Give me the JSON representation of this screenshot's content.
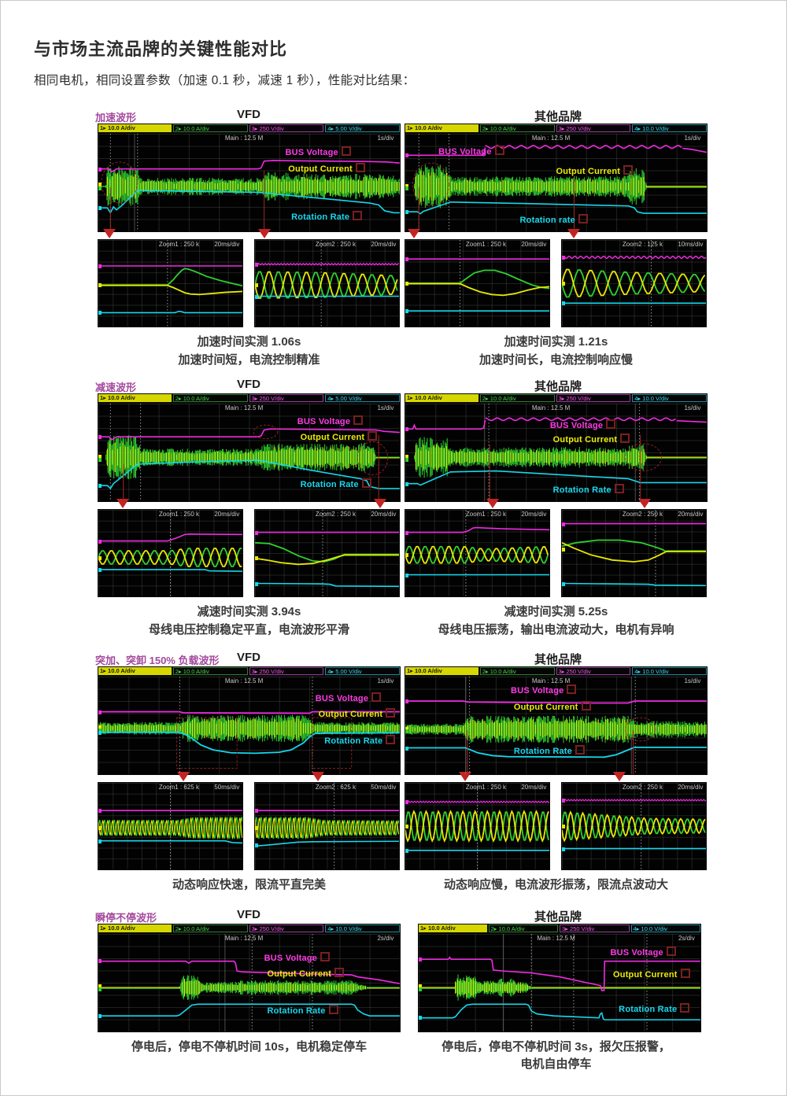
{
  "page": {
    "title": "与市场主流品牌的关键性能对比",
    "subtitle": "相同电机，相同设置参数（加速 0.1 秒，减速 1 秒），性能对比结果："
  },
  "colors": {
    "bus_voltage": "#f02ae2",
    "output_current_yellow": "#e9e902",
    "output_current_green": "#2fd02f",
    "rotation_rate": "#14d8ec",
    "section_label": "#a3489c",
    "arrow_red": "#c22424"
  },
  "sections": [
    {
      "label": "加速波形",
      "left_title": "VFD",
      "right_title": "其他品牌",
      "left": {
        "channels": [
          "10.0 A/div",
          "10.0 A/div",
          "250 V/div",
          "5.00 V/div"
        ],
        "record": "Main : 12.5 M",
        "timebase": "1s/div",
        "labels": {
          "bus": "BUS Voltage",
          "current": "Output Current",
          "rate": "Rotation Rate"
        },
        "zooms": [
          {
            "title": "Zoom1 : 250 k",
            "timebase": "20ms/div"
          },
          {
            "title": "Zoom2 : 250 k",
            "timebase": "20ms/div"
          }
        ]
      },
      "right": {
        "channels": [
          "10.0 A/div",
          "10.0 A/div",
          "250 V/div",
          "10.0 V/div"
        ],
        "record": "Main : 12.5 M",
        "timebase": "1s/div",
        "labels": {
          "bus": "BUS Voltage",
          "current": "Output Current",
          "rate": "Rotation rate"
        },
        "zooms": [
          {
            "title": "Zoom1 : 250 k",
            "timebase": "20ms/div"
          },
          {
            "title": "Zoom2 : 125 k",
            "timebase": "10ms/div"
          }
        ]
      },
      "left_caption": [
        "加速时间实测 1.06s",
        "加速时间短，电流控制精准"
      ],
      "right_caption": [
        "加速时间实测 1.21s",
        "加速时间长，电流控制响应慢"
      ]
    },
    {
      "label": "减速波形",
      "left_title": "VFD",
      "right_title": "其他品牌",
      "left": {
        "channels": [
          "10.0 A/div",
          "10.0 A/div",
          "250 V/div",
          "5.00 V/div"
        ],
        "record": "Main : 12.5 M",
        "timebase": "1s/div",
        "labels": {
          "bus": "BUS Voltage",
          "current": "Output Current",
          "rate": "Rotation Rate"
        },
        "zooms": [
          {
            "title": "Zoom1 : 250 k",
            "timebase": "20ms/div"
          },
          {
            "title": "Zoom2 : 250 k",
            "timebase": "20ms/div"
          }
        ]
      },
      "right": {
        "channels": [
          "10.0 A/div",
          "10.0 A/div",
          "250 V/div",
          "10.0 V/div"
        ],
        "record": "Main : 12.5 M",
        "timebase": "1s/div",
        "labels": {
          "bus": "BUS Voltage",
          "current": "Output Current",
          "rate": "Rotation Rate"
        },
        "zooms": [
          {
            "title": "Zoom1 : 250 k",
            "timebase": "20ms/div"
          },
          {
            "title": "Zoom2 : 250 k",
            "timebase": "20ms/div"
          }
        ]
      },
      "left_caption": [
        "减速时间实测 3.94s",
        "母线电压控制稳定平直，电流波形平滑"
      ],
      "right_caption": [
        "减速时间实测 5.25s",
        "母线电压振荡，输出电流波动大，电机有异响"
      ]
    },
    {
      "label": "突加、突卸 150% 负载波形",
      "left_title": "VFD",
      "right_title": "其他品牌",
      "left": {
        "channels": [
          "10.0 A/div",
          "10.0 A/div",
          "250 V/div",
          "5.00 V/div"
        ],
        "record": "Main : 12.5 M",
        "timebase": "1s/div",
        "labels": {
          "bus": "BUS Voltage",
          "current": "Output Current",
          "rate": "Rotation Rate"
        },
        "zooms": [
          {
            "title": "Zoom1 : 625 k",
            "timebase": "50ms/div"
          },
          {
            "title": "Zoom2 : 625 k",
            "timebase": "50ms/div"
          }
        ]
      },
      "right": {
        "channels": [
          "10.0 A/div",
          "10.0 A/div",
          "250 V/div",
          "10.0 V/div"
        ],
        "record": "Main : 12.5 M",
        "timebase": "1s/div",
        "labels": {
          "bus": "BUS Voltage",
          "current": "Output Current",
          "rate": "Rotation Rate"
        },
        "zooms": [
          {
            "title": "Zoom1 : 250 k",
            "timebase": "20ms/div"
          },
          {
            "title": "Zoom2 : 250 k",
            "timebase": "20ms/div"
          }
        ]
      },
      "left_caption": [
        "动态响应快速，限流平直完美"
      ],
      "right_caption": [
        "动态响应慢，电流波形振荡，限流点波动大"
      ]
    },
    {
      "label": "瞬停不停波形",
      "left_title": "VFD",
      "right_title": "其他品牌",
      "left": {
        "channels": [
          "10.0 A/div",
          "10.0 A/div",
          "250 V/div",
          "10.0 V/div"
        ],
        "record": "Main : 12.5 M",
        "timebase": "2s/div",
        "labels": {
          "bus": "BUS Voltage",
          "current": "Output Current",
          "rate": "Rotation Rate"
        }
      },
      "right": {
        "channels": [
          "10.0 A/div",
          "10.0 A/div",
          "250 V/div",
          "10.0 V/div"
        ],
        "record": "Main : 12.5 M",
        "timebase": "2s/div",
        "labels": {
          "bus": "BUS Voltage",
          "current": "Output Current",
          "rate": "Rotation Rate"
        }
      },
      "left_caption": [
        "停电后，停电不停机时间 10s，电机稳定停车"
      ],
      "right_caption": [
        "停电后，停电不停机时间 3s，报欠压报警，",
        "电机自由停车"
      ]
    }
  ]
}
